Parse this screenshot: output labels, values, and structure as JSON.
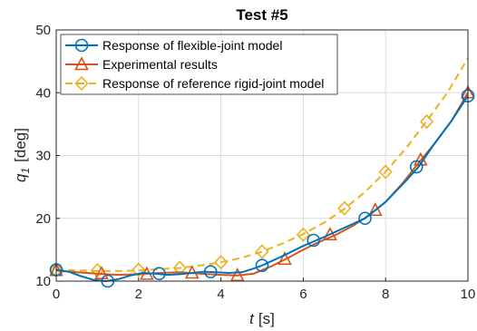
{
  "chart_data": {
    "type": "line",
    "title": "Test #5",
    "xlabel_italic": "t",
    "xlabel_unit": "[s]",
    "ylabel_italic": "q",
    "ylabel_sub": "1",
    "ylabel_unit": "[deg]",
    "xlim": [
      0,
      10
    ],
    "ylim": [
      10,
      50
    ],
    "xticks": [
      "0",
      "2",
      "4",
      "6",
      "8",
      "10"
    ],
    "yticks": [
      "10",
      "20",
      "30",
      "40",
      "50"
    ],
    "grid": true,
    "legend_position": "top-left",
    "series": [
      {
        "name": "Response of flexible-joint model",
        "color": "#0072BD",
        "line": "solid",
        "marker": "circle",
        "x": [
          0,
          0.3,
          0.6,
          0.9,
          1.2,
          1.5,
          1.8,
          2.1,
          2.4,
          2.7,
          3.0,
          3.3,
          3.6,
          3.9,
          4.2,
          4.5,
          4.8,
          5.0,
          5.5,
          6.0,
          6.5,
          7.0,
          7.5,
          8.0,
          8.5,
          8.8,
          9.2,
          9.6,
          10.0
        ],
        "y": [
          11.8,
          11.5,
          10.8,
          10.2,
          10.0,
          10.3,
          10.9,
          11.3,
          11.2,
          11.0,
          11.1,
          11.3,
          11.5,
          11.4,
          11.3,
          11.4,
          12.0,
          12.5,
          14.0,
          15.6,
          17.0,
          18.5,
          20.0,
          22.6,
          26.0,
          28.2,
          32.0,
          35.5,
          39.5
        ],
        "marker_x": [
          0,
          1.25,
          2.5,
          3.75,
          5.0,
          6.25,
          7.5,
          8.75,
          10.0
        ],
        "marker_y": [
          11.8,
          10.0,
          11.2,
          11.5,
          12.5,
          16.5,
          20.0,
          28.2,
          39.5
        ]
      },
      {
        "name": "Experimental results",
        "color": "#D95319",
        "line": "solid",
        "marker": "triangle",
        "x": [
          0,
          0.5,
          1.0,
          1.5,
          2.0,
          2.5,
          3.0,
          3.5,
          4.0,
          4.4,
          4.8,
          5.2,
          5.6,
          6.0,
          6.4,
          6.8,
          7.2,
          7.6,
          8.0,
          8.4,
          8.8,
          9.2,
          9.6,
          10.0
        ],
        "y": [
          11.7,
          11.4,
          11.2,
          11.0,
          11.1,
          11.3,
          11.4,
          11.2,
          11.0,
          10.9,
          11.2,
          12.3,
          13.6,
          15.0,
          16.3,
          17.4,
          18.8,
          20.5,
          22.6,
          25.5,
          28.8,
          32.0,
          35.5,
          40.0
        ],
        "marker_x": [
          0,
          1.1,
          2.2,
          3.3,
          4.4,
          5.55,
          6.65,
          7.75,
          8.85,
          10.0
        ],
        "marker_y": [
          11.7,
          11.2,
          11.1,
          11.3,
          10.9,
          13.5,
          17.4,
          21.3,
          29.3,
          40.0
        ]
      },
      {
        "name": "Response of reference rigid-joint model",
        "color": "#EDB120",
        "line": "dashed",
        "marker": "diamond",
        "x": [
          0,
          0.5,
          1.0,
          1.5,
          2.0,
          2.5,
          3.0,
          3.5,
          4.0,
          4.5,
          5.0,
          5.5,
          6.0,
          6.5,
          7.0,
          7.5,
          8.0,
          8.5,
          9.0,
          9.5,
          10.0
        ],
        "y": [
          11.8,
          11.7,
          11.6,
          11.6,
          11.7,
          11.9,
          12.1,
          12.5,
          13.0,
          13.7,
          14.7,
          16.0,
          17.5,
          19.3,
          21.5,
          24.2,
          27.4,
          31.2,
          35.5,
          40.0,
          45.5
        ],
        "marker_x": [
          0,
          1.0,
          2.0,
          3.0,
          4.0,
          5.0,
          6.0,
          7.0,
          8.0,
          9.0
        ],
        "marker_y": [
          11.8,
          11.7,
          11.8,
          12.1,
          13.0,
          14.7,
          17.4,
          21.6,
          27.4,
          35.4
        ]
      }
    ]
  }
}
